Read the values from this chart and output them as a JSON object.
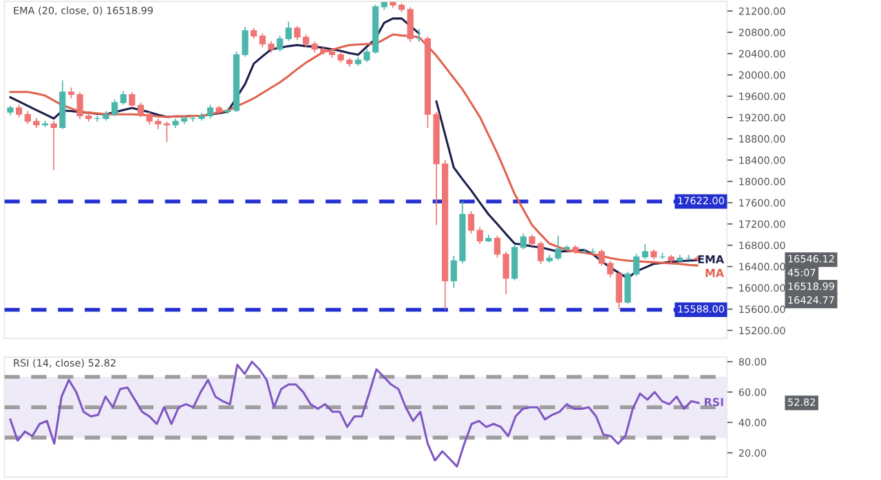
{
  "chart_data": [
    {
      "type": "candlestick",
      "categories": [
        null,
        null,
        null,
        null,
        null,
        null,
        null,
        null,
        null,
        null,
        null,
        null,
        null,
        null,
        null,
        null,
        null,
        null,
        null,
        null,
        null,
        null,
        null,
        null,
        null,
        null,
        null,
        null,
        null,
        null,
        null,
        null,
        null,
        null,
        null,
        null,
        null,
        null,
        null,
        null,
        null,
        null,
        null,
        null,
        null,
        null,
        null,
        null,
        null,
        null,
        null,
        null,
        null,
        null,
        null,
        null,
        null,
        null,
        null,
        null,
        null,
        null,
        null,
        null,
        null,
        null,
        null,
        null,
        null,
        null,
        null,
        null,
        null,
        null,
        null,
        null,
        null,
        null,
        null,
        null
      ],
      "ohlc": [
        [
          19300,
          19420,
          19240,
          19380
        ],
        [
          19380,
          19440,
          19200,
          19260
        ],
        [
          19260,
          19320,
          19080,
          19130
        ],
        [
          19130,
          19190,
          19000,
          19060
        ],
        [
          19060,
          19140,
          19020,
          19080
        ],
        [
          19080,
          19140,
          18210,
          19010
        ],
        [
          19010,
          19900,
          18980,
          19680
        ],
        [
          19680,
          19760,
          19560,
          19630
        ],
        [
          19630,
          19680,
          19170,
          19230
        ],
        [
          19230,
          19290,
          19120,
          19180
        ],
        [
          19180,
          19240,
          19120,
          19180
        ],
        [
          19180,
          19320,
          19140,
          19260
        ],
        [
          19260,
          19540,
          19220,
          19480
        ],
        [
          19480,
          19700,
          19440,
          19630
        ],
        [
          19630,
          19680,
          19380,
          19430
        ],
        [
          19430,
          19480,
          19200,
          19260
        ],
        [
          19260,
          19310,
          19070,
          19130
        ],
        [
          19130,
          19180,
          18980,
          19080
        ],
        [
          19080,
          19120,
          18740,
          19060
        ],
        [
          19060,
          19180,
          19000,
          19130
        ],
        [
          19130,
          19230,
          19080,
          19180
        ],
        [
          19180,
          19240,
          19120,
          19180
        ],
        [
          19180,
          19290,
          19140,
          19230
        ],
        [
          19230,
          19440,
          19180,
          19380
        ],
        [
          19380,
          19420,
          19260,
          19310
        ],
        [
          19310,
          19380,
          19270,
          19330
        ],
        [
          19330,
          20440,
          19300,
          20380
        ],
        [
          20380,
          20900,
          20340,
          20830
        ],
        [
          20830,
          20880,
          20680,
          20730
        ],
        [
          20730,
          20780,
          20520,
          20580
        ],
        [
          20580,
          20640,
          20420,
          20480
        ],
        [
          20480,
          20740,
          20440,
          20680
        ],
        [
          20680,
          21000,
          20640,
          20880
        ],
        [
          20880,
          20920,
          20650,
          20710
        ],
        [
          20710,
          20760,
          20520,
          20580
        ],
        [
          20580,
          20630,
          20420,
          20480
        ],
        [
          20480,
          20540,
          20380,
          20430
        ],
        [
          20430,
          20480,
          20320,
          20380
        ],
        [
          20380,
          20430,
          20230,
          20280
        ],
        [
          20280,
          20320,
          20150,
          20210
        ],
        [
          20210,
          20340,
          20170,
          20280
        ],
        [
          20280,
          20490,
          20240,
          20430
        ],
        [
          20430,
          21320,
          20400,
          21280
        ],
        [
          21280,
          21370,
          21220,
          21360
        ],
        [
          21360,
          21370,
          21260,
          21310
        ],
        [
          21310,
          21350,
          21180,
          21230
        ],
        [
          21230,
          21270,
          20620,
          20680
        ],
        [
          20680,
          20860,
          20620,
          20680
        ],
        [
          20680,
          20720,
          19000,
          19260
        ],
        [
          19260,
          19300,
          17180,
          18330
        ],
        [
          18330,
          18400,
          15590,
          16130
        ],
        [
          16130,
          16600,
          16000,
          16510
        ],
        [
          16510,
          17630,
          16460,
          17380
        ],
        [
          17380,
          17440,
          17020,
          17080
        ],
        [
          17080,
          17140,
          16820,
          16880
        ],
        [
          16880,
          17000,
          16860,
          16930
        ],
        [
          16930,
          16980,
          16570,
          16630
        ],
        [
          16630,
          16680,
          15880,
          16180
        ],
        [
          16180,
          16820,
          16140,
          16760
        ],
        [
          16760,
          17020,
          16720,
          16960
        ],
        [
          16960,
          17000,
          16780,
          16830
        ],
        [
          16830,
          16870,
          16450,
          16510
        ],
        [
          16510,
          16620,
          16470,
          16560
        ],
        [
          16560,
          16980,
          16520,
          16730
        ],
        [
          16730,
          16800,
          16700,
          16760
        ],
        [
          16760,
          16800,
          16640,
          16680
        ],
        [
          16680,
          16740,
          16640,
          16680
        ],
        [
          16680,
          16740,
          16640,
          16680
        ],
        [
          16680,
          16720,
          16420,
          16460
        ],
        [
          16460,
          16500,
          16200,
          16260
        ],
        [
          16260,
          16300,
          15600,
          15730
        ],
        [
          15730,
          16300,
          15700,
          16260
        ],
        [
          16260,
          16640,
          16220,
          16580
        ],
        [
          16580,
          16820,
          16540,
          16680
        ],
        [
          16680,
          16720,
          16530,
          16580
        ],
        [
          16580,
          16660,
          16540,
          16580
        ],
        [
          16580,
          16620,
          16460,
          16510
        ],
        [
          16510,
          16620,
          16480,
          16560
        ],
        [
          16560,
          16620,
          16520,
          16560
        ],
        [
          16560,
          16600,
          16500,
          16530
        ]
      ],
      "colors": [
        "#4db6ac",
        "#ef7474",
        "#ef7474",
        "#ef7474",
        "#4db6ac",
        "#ef7474",
        "#4db6ac",
        "#ef7474",
        "#ef7474",
        "#ef7474",
        "#4db6ac",
        "#4db6ac",
        "#4db6ac",
        "#4db6ac",
        "#ef7474",
        "#ef7474",
        "#ef7474",
        "#ef7474",
        "#ef7474",
        "#4db6ac",
        "#4db6ac",
        "#4db6ac",
        "#4db6ac",
        "#4db6ac",
        "#ef7474",
        "#4db6ac",
        "#4db6ac",
        "#4db6ac",
        "#ef7474",
        "#ef7474",
        "#ef7474",
        "#4db6ac",
        "#4db6ac",
        "#ef7474",
        "#ef7474",
        "#ef7474",
        "#ef7474",
        "#ef7474",
        "#ef7474",
        "#ef7474",
        "#4db6ac",
        "#4db6ac",
        "#4db6ac",
        "#4db6ac",
        "#ef7474",
        "#ef7474",
        "#ef7474",
        "#4db6ac",
        "#ef7474",
        "#ef7474",
        "#ef7474",
        "#4db6ac",
        "#4db6ac",
        "#ef7474",
        "#ef7474",
        "#4db6ac",
        "#ef7474",
        "#ef7474",
        "#4db6ac",
        "#4db6ac",
        "#ef7474",
        "#ef7474",
        "#4db6ac",
        "#4db6ac",
        "#4db6ac",
        "#ef7474",
        "#4db6ac",
        "#4db6ac",
        "#ef7474",
        "#ef7474",
        "#ef7474",
        "#4db6ac",
        "#4db6ac",
        "#4db6ac",
        "#ef7474",
        "#4db6ac",
        "#ef7474",
        "#4db6ac",
        "#4db6ac",
        "#ef7474"
      ],
      "series": [
        {
          "name": "EMA",
          "type": "line",
          "color": "#1b1f4b",
          "values": [
            19580,
            19500,
            19420,
            19340,
            19260,
            19180,
            19330,
            19320,
            19300,
            19290,
            19270,
            19260,
            19300,
            19340,
            19380,
            19340,
            19300,
            19250,
            19210,
            19220,
            19220,
            19230,
            19230,
            19260,
            19280,
            19310,
            19570,
            19830,
            20210,
            20350,
            20480,
            20510,
            20540,
            20560,
            20540,
            20530,
            20510,
            20480,
            20450,
            20410,
            20380,
            20530,
            20680,
            20980,
            21060,
            21060,
            20920,
            20780,
            null,
            19500,
            18880,
            18260,
            18040,
            17830,
            17600,
            17380,
            17200,
            17010,
            16830,
            16810,
            16780,
            16760,
            16720,
            16680,
            16690,
            16700,
            16710,
            16630,
            16500,
            16380,
            16280,
            16180,
            16310,
            16380,
            16450,
            16470,
            16490,
            16500,
            16510,
            16520
          ]
        },
        {
          "name": "MA",
          "type": "line",
          "color": "#e0634f",
          "values": [
            19680,
            19680,
            19680,
            19650,
            19610,
            19520,
            19430,
            19370,
            19310,
            19290,
            19280,
            19260,
            19260,
            19260,
            19260,
            19250,
            19240,
            19220,
            19210,
            19220,
            19220,
            19230,
            19230,
            19260,
            19300,
            19330,
            19410,
            19480,
            19560,
            19660,
            19760,
            19860,
            19980,
            20110,
            20230,
            20330,
            20430,
            20470,
            20520,
            20560,
            20570,
            20580,
            20580,
            20670,
            20760,
            20740,
            20730,
            20710,
            20540,
            20360,
            20150,
            19940,
            19730,
            19470,
            19210,
            18870,
            18530,
            18150,
            17760,
            17470,
            17180,
            17000,
            16830,
            16770,
            16710,
            16680,
            16660,
            16630,
            16600,
            16560,
            16530,
            16510,
            16500,
            16490,
            16480,
            16470,
            16460,
            16450,
            16430,
            16420
          ]
        }
      ],
      "ylim": [
        15050,
        21380
      ],
      "yticks": [
        {
          "value": 15200,
          "label": "15200.00"
        },
        {
          "value": 15600,
          "label": "15600.00"
        },
        {
          "value": 16000,
          "label": "16000.00"
        },
        {
          "value": 16400,
          "label": "16400.00"
        },
        {
          "value": 16800,
          "label": "16800.00"
        },
        {
          "value": 17200,
          "label": "17200.00"
        },
        {
          "value": 17600,
          "label": "17600.00"
        },
        {
          "value": 18000,
          "label": "18000.00"
        },
        {
          "value": 18400,
          "label": "18400.00"
        },
        {
          "value": 18800,
          "label": "18800.00"
        },
        {
          "value": 19200,
          "label": "19200.00"
        },
        {
          "value": 19600,
          "label": "19600.00"
        },
        {
          "value": 20000,
          "label": "20000.00"
        },
        {
          "value": 20400,
          "label": "20400.00"
        },
        {
          "value": 20800,
          "label": "20800.00"
        },
        {
          "value": 21200,
          "label": "21200.00"
        }
      ],
      "ref_lines": [
        {
          "axis": "y",
          "value": 17622,
          "label": "17622.00",
          "color": "#2330d0",
          "line_style": "dashed"
        },
        {
          "axis": "y",
          "value": 15588,
          "label": "15588.00",
          "color": "#2330d0",
          "line_style": "dashed"
        }
      ],
      "annotations": [
        "EMA (20, close, 0) 16518.99",
        "16546.12",
        "45:07",
        "16518.99",
        "16424.77"
      ],
      "tick_labels": "y"
    },
    {
      "type": "line",
      "categories": [
        null,
        null,
        null,
        null,
        null,
        null,
        null,
        null,
        null,
        null,
        null,
        null,
        null,
        null,
        null,
        null,
        null,
        null,
        null,
        null,
        null,
        null,
        null,
        null,
        null,
        null,
        null,
        null,
        null,
        null,
        null,
        null,
        null,
        null,
        null,
        null,
        null,
        null,
        null,
        null,
        null,
        null,
        null,
        null,
        null,
        null,
        null,
        null,
        null,
        null,
        null,
        null,
        null,
        null,
        null,
        null,
        null,
        null,
        null,
        null,
        null,
        null,
        null,
        null,
        null,
        null,
        null,
        null,
        null,
        null,
        null,
        null,
        null,
        null,
        null,
        null,
        null,
        null,
        null,
        null,
        null,
        null,
        null,
        null,
        null,
        null,
        null,
        null,
        null,
        null,
        null,
        null,
        null,
        null,
        null
      ],
      "series": [
        {
          "name": "RSI",
          "color": "#7e57c2",
          "values": [
            42,
            28,
            34,
            31,
            39,
            41,
            26,
            57,
            68,
            60,
            47,
            44,
            45,
            57,
            50,
            62,
            63,
            55,
            47,
            44,
            39,
            50,
            39,
            50,
            52,
            50,
            60,
            68,
            57,
            54,
            52,
            78,
            72,
            80,
            75,
            68,
            50,
            62,
            65,
            65,
            60,
            52,
            49,
            52,
            47,
            47,
            37,
            44,
            44,
            59,
            75,
            70,
            65,
            62,
            50,
            41,
            47,
            26,
            15,
            21,
            16,
            11,
            26,
            39,
            41,
            37,
            39,
            37,
            31,
            44,
            49,
            50,
            50,
            42,
            45,
            47,
            52,
            49,
            49,
            50,
            44,
            32,
            31,
            26,
            31,
            49,
            59,
            55,
            60,
            54,
            52,
            57,
            49,
            54,
            52.82
          ]
        }
      ],
      "ylim": [
        4,
        83
      ],
      "yticks": [
        {
          "value": 20,
          "label": "20.00"
        },
        {
          "value": 40,
          "label": "40.00"
        },
        {
          "value": 60,
          "label": "60.00"
        },
        {
          "value": 80,
          "label": "80.00"
        }
      ],
      "bands": [
        {
          "axis": "y",
          "from": 30,
          "to": 70,
          "color": "#efeaf8"
        }
      ],
      "ref_lines": [
        {
          "axis": "y",
          "value": 70,
          "color": "#9e9e9e",
          "line_style": "dashed"
        },
        {
          "axis": "y",
          "value": 50,
          "color": "#9e9e9e",
          "line_style": "dashed"
        },
        {
          "axis": "y",
          "value": 30,
          "color": "#9e9e9e",
          "line_style": "dashed"
        }
      ],
      "annotations": [
        "RSI (14, close) 52.82",
        "52.82"
      ],
      "tick_labels": "y"
    }
  ]
}
